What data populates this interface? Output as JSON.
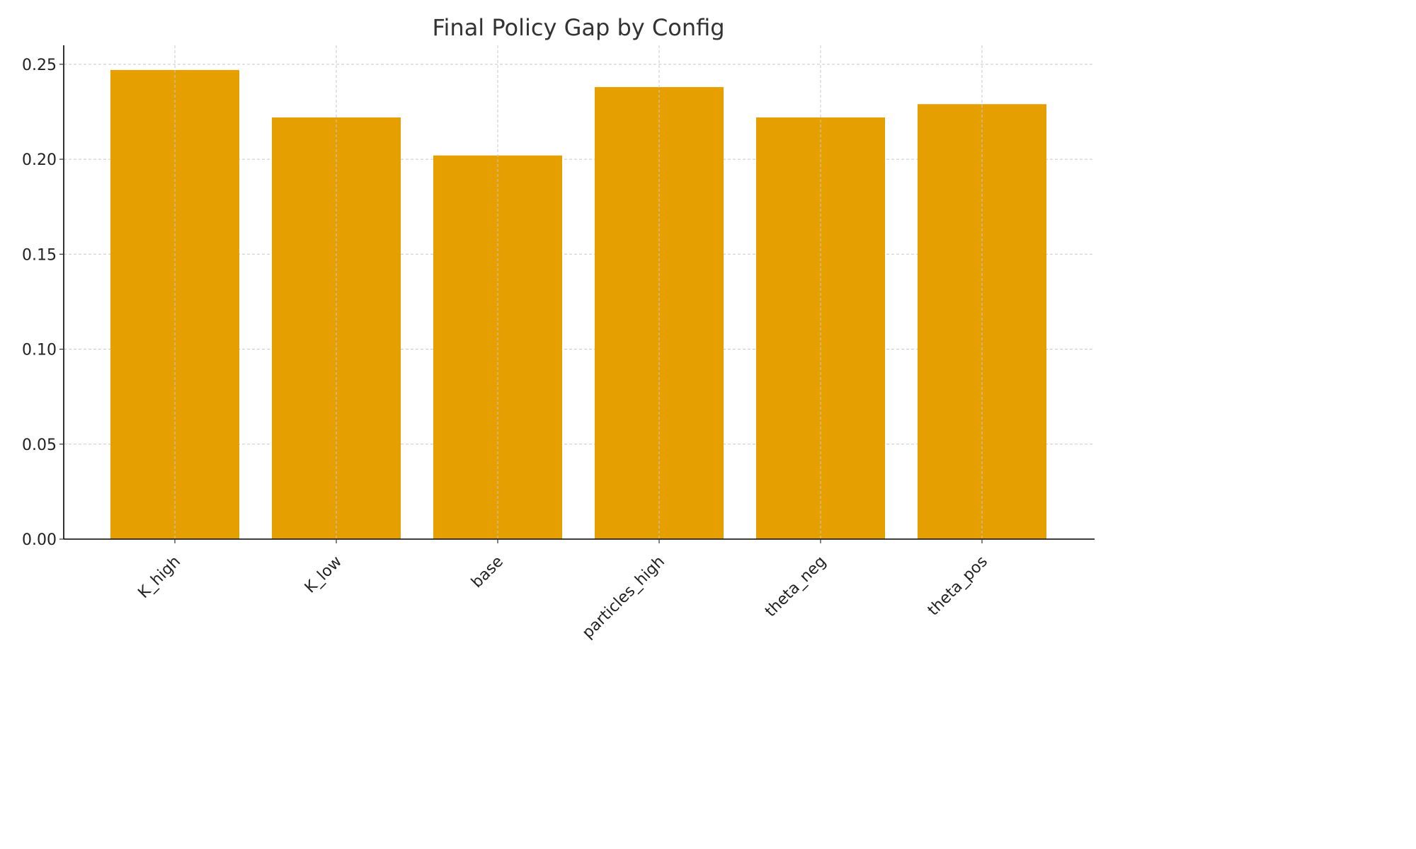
{
  "chart_data": {
    "type": "bar",
    "title": "Final Policy Gap by Config",
    "xlabel": "",
    "ylabel": "",
    "categories": [
      "K_high",
      "K_low",
      "base",
      "particles_high",
      "theta_neg",
      "theta_pos"
    ],
    "values": [
      0.247,
      0.222,
      0.202,
      0.238,
      0.222,
      0.229
    ],
    "ylim": [
      0,
      0.26
    ],
    "yticks": [
      0.0,
      0.05,
      0.1,
      0.15,
      0.2,
      0.25
    ],
    "ytick_labels": [
      "0.00",
      "0.05",
      "0.10",
      "0.15",
      "0.20",
      "0.25"
    ],
    "grid": true,
    "bar_color": "#e5a000"
  }
}
